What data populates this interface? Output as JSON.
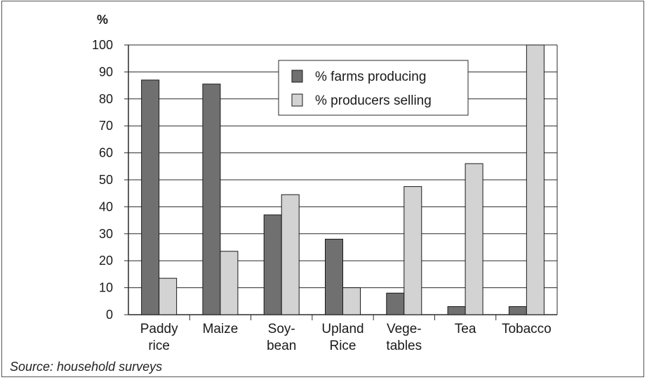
{
  "chart_data": {
    "type": "bar",
    "ylabel": "%",
    "xlabel": "",
    "ylim": [
      0,
      100
    ],
    "yticks": [
      0,
      10,
      20,
      30,
      40,
      50,
      60,
      70,
      80,
      90,
      100
    ],
    "grid": true,
    "legend_position": "top-center",
    "categories": [
      [
        "Paddy",
        "rice"
      ],
      [
        "Maize"
      ],
      [
        "Soy-",
        "bean"
      ],
      [
        "Upland",
        "Rice"
      ],
      [
        "Vege-",
        "tables"
      ],
      [
        "Tea"
      ],
      [
        "Tobacco"
      ]
    ],
    "series": [
      {
        "name": "% farms producing",
        "color": "#707070",
        "values": [
          87,
          85.5,
          37,
          28,
          8,
          3,
          3
        ]
      },
      {
        "name": "% producers selling",
        "color": "#d3d3d3",
        "values": [
          13.5,
          23.5,
          44.5,
          10,
          47.5,
          56,
          100
        ]
      }
    ]
  },
  "source_note": "Source: household surveys"
}
